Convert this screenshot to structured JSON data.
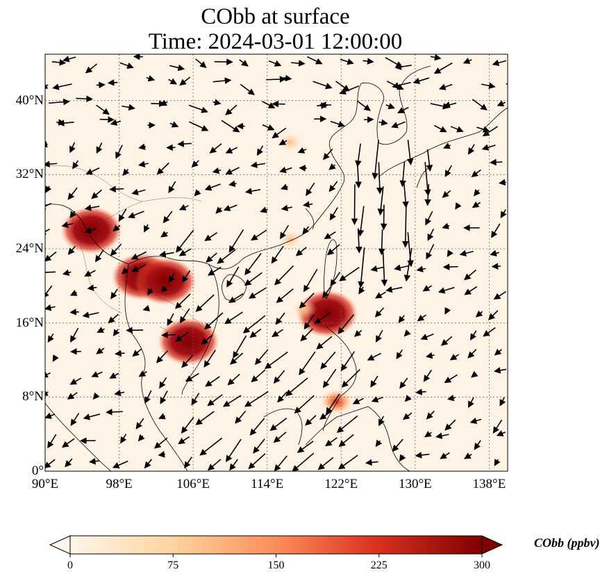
{
  "title": {
    "line1": "CObb at surface",
    "line2": "Time: 2024-03-01 12:00:00"
  },
  "axes": {
    "lat_ticks": [
      "0°",
      "8°N",
      "16°N",
      "24°N",
      "32°N",
      "40°N"
    ],
    "lon_ticks": [
      "90°E",
      "98°E",
      "106°E",
      "114°E",
      "122°E",
      "130°E",
      "138°E"
    ],
    "lon_range": [
      90,
      140
    ],
    "lat_range": [
      0,
      45
    ],
    "grid": "dotted"
  },
  "colorbar": {
    "label": "CObb (ppbv)",
    "ticks": [
      "0",
      "75",
      "150",
      "225",
      "300"
    ],
    "range": [
      0,
      300
    ],
    "extend": "both",
    "colormap": [
      "#fff5eb",
      "#fdd49e",
      "#fc8d59",
      "#d7301f",
      "#7f0000"
    ]
  },
  "chart_data": {
    "type": "heatmap",
    "variable": "CObb",
    "units": "ppbv",
    "hotspots": [
      {
        "lon": 100.5,
        "lat": 21.0,
        "value": 300
      },
      {
        "lon": 103.0,
        "lat": 20.5,
        "value": 300
      },
      {
        "lon": 95.0,
        "lat": 26.0,
        "value": 280
      },
      {
        "lon": 105.5,
        "lat": 14.0,
        "value": 290
      },
      {
        "lon": 120.5,
        "lat": 17.0,
        "value": 260
      },
      {
        "lon": 118.0,
        "lat": 17.5,
        "value": 120
      },
      {
        "lon": 116.5,
        "lat": 25.0,
        "value": 110
      },
      {
        "lon": 121.5,
        "lat": 7.5,
        "value": 150
      },
      {
        "lon": 116.5,
        "lat": 35.5,
        "value": 60
      }
    ],
    "wind_vectors": "black arrows showing surface wind; easterly to northeasterly flow over South China Sea, northerly along 125–130°E"
  }
}
